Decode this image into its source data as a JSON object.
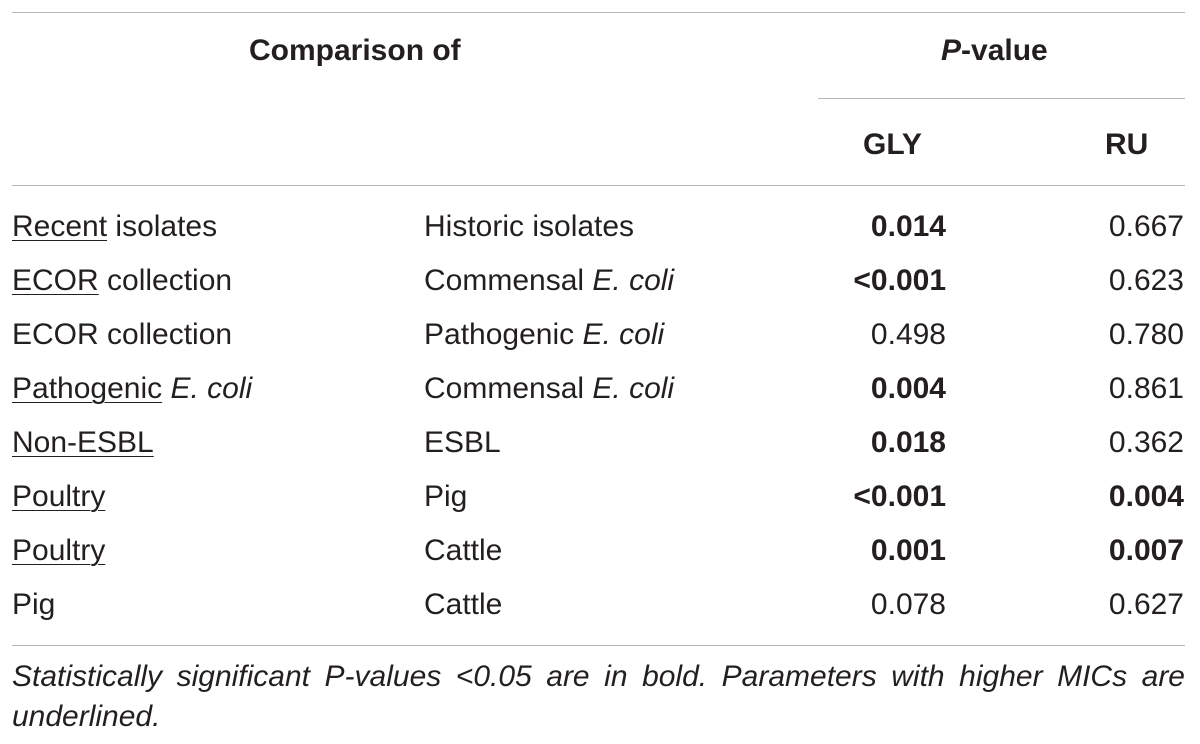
{
  "header": {
    "comparison_of": "Comparison of",
    "p_value_italic": "P",
    "p_value_rest": "-value",
    "gly": "GLY",
    "ru": "RU"
  },
  "rows": [
    {
      "a": {
        "under": "Recent",
        "plain": " isolates"
      },
      "b": {
        "plain": "Historic isolates"
      },
      "gly": "0.014",
      "gly_bold": true,
      "ru": "0.667",
      "ru_bold": false
    },
    {
      "a": {
        "under": "ECOR",
        "plain": " collection"
      },
      "b": {
        "plain": "Commensal ",
        "ital": "E. coli"
      },
      "gly": "<0.001",
      "gly_bold": true,
      "ru": "0.623",
      "ru_bold": false
    },
    {
      "a": {
        "plain": "ECOR collection"
      },
      "b": {
        "plain": "Pathogenic ",
        "ital": "E. coli"
      },
      "gly": "0.498",
      "gly_bold": false,
      "ru": "0.780",
      "ru_bold": false
    },
    {
      "a": {
        "under": "Pathogenic",
        "plain": " ",
        "ital": "E. coli"
      },
      "b": {
        "plain": "Commensal ",
        "ital": "E. coli"
      },
      "gly": "0.004",
      "gly_bold": true,
      "ru": "0.861",
      "ru_bold": false
    },
    {
      "a": {
        "under": "Non-ESBL"
      },
      "b": {
        "plain": "ESBL"
      },
      "gly": "0.018",
      "gly_bold": true,
      "ru": "0.362",
      "ru_bold": false
    },
    {
      "a": {
        "under": "Poultry"
      },
      "b": {
        "plain": "Pig"
      },
      "gly": "<0.001",
      "gly_bold": true,
      "ru": "0.004",
      "ru_bold": true
    },
    {
      "a": {
        "under": "Poultry"
      },
      "b": {
        "plain": "Cattle"
      },
      "gly": "0.001",
      "gly_bold": true,
      "ru": "0.007",
      "ru_bold": true
    },
    {
      "a": {
        "plain": "Pig"
      },
      "b": {
        "plain": "Cattle"
      },
      "gly": "0.078",
      "gly_bold": false,
      "ru": "0.627",
      "ru_bold": false
    }
  ],
  "footer": "Statistically significant P-values <0.05 are in bold. Parameters with higher MICs are underlined."
}
